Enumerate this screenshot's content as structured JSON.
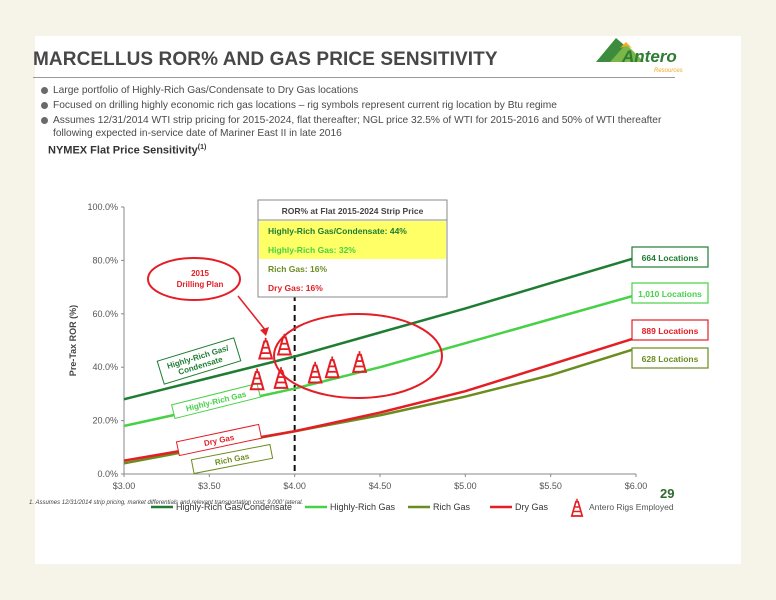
{
  "slide": {
    "title": "MARCELLUS ROR% AND GAS PRICE SENSITIVITY",
    "logo_text": "Antero",
    "logo_subtext": "Resources",
    "bullets": [
      "Large portfolio of Highly-Rich Gas/Condensate to Dry Gas locations",
      "Focused on drilling highly economic rich gas locations – rig symbols represent current rig location by Btu regime",
      "Assumes 12/31/2014 WTI strip pricing for 2015-2024, flat thereafter; NGL price 32.5% of WTI for 2015-2016 and 50% of WTI thereafter following expected in-service date of Mariner East II in late 2016"
    ],
    "chart_heading": "NYMEX Flat Price Sensitivity",
    "chart_heading_sup": "(1)",
    "page_number": "29",
    "footnote": "1.  Assumes 12/31/2014 strip pricing, market differentials and relevant transportation cost; 9,000' lateral."
  },
  "colors": {
    "highly_rich_condensate": "#1e7d32",
    "highly_rich_gas": "#47d147",
    "rich_gas": "#6b8c1f",
    "dry_gas": "#e31e24",
    "rig": "#e31e24",
    "callout_highlight": "#ffff66",
    "page_number": "#2e6b2e"
  },
  "chart_data": {
    "type": "line",
    "x": [
      3.0,
      3.5,
      4.0,
      4.5,
      5.0,
      5.5,
      6.0
    ],
    "xtick_labels": [
      "$3.00",
      "$3.50",
      "$4.00",
      "$4.50",
      "$5.00",
      "$5.50",
      "$6.00"
    ],
    "xlim": [
      3.0,
      6.0
    ],
    "ylabel": "Pre-Tax ROR (%)",
    "ylim": [
      0,
      100
    ],
    "yticks": [
      0,
      20,
      40,
      60,
      80,
      100
    ],
    "ytick_labels": [
      "0.0%",
      "20.0%",
      "40.0%",
      "60.0%",
      "80.0%",
      "100.0%"
    ],
    "grid": false,
    "legend_position": "bottom",
    "reference_line": {
      "x": 4.0,
      "style": "dashed"
    },
    "series": [
      {
        "name": "Highly-Rich Gas/Condensate",
        "color": "#1e7d32",
        "curve_label": "Highly-Rich Gas/ Condensate",
        "end_label": "664 Locations",
        "values": [
          28,
          36,
          44,
          53,
          62,
          71.5,
          81
        ]
      },
      {
        "name": "Highly-Rich Gas",
        "color": "#47d147",
        "curve_label": "Highly-Rich Gas",
        "end_label": "1,010 Locations",
        "values": [
          18,
          25,
          32,
          40,
          49,
          58,
          67
        ]
      },
      {
        "name": "Rich Gas",
        "color": "#6b8c1f",
        "curve_label": "Rich Gas",
        "end_label": "628 Locations",
        "values": [
          4,
          10,
          16,
          22,
          29,
          37,
          47
        ]
      },
      {
        "name": "Dry Gas",
        "color": "#e31e24",
        "curve_label": "Dry Gas",
        "end_label": "889 Locations",
        "values": [
          5,
          10.5,
          16,
          23,
          31,
          41,
          51
        ]
      }
    ],
    "callout": {
      "title": "ROR% at Flat 2015-2024 Strip Price",
      "rows": [
        {
          "text": "Highly-Rich Gas/Condensate: 44%",
          "highlight": true
        },
        {
          "text": "Highly-Rich Gas: 32%",
          "highlight": true
        },
        {
          "text": "Rich Gas: 16%",
          "highlight": false
        },
        {
          "text": "Dry Gas: 16%",
          "highlight": false
        }
      ]
    },
    "drilling_plan_label": "2015 Drilling Plan",
    "rig_legend_label": "Antero Rigs Employed",
    "rigs": [
      {
        "x": 3.83,
        "y": 47
      },
      {
        "x": 3.94,
        "y": 48.5
      },
      {
        "x": 3.78,
        "y": 35.5
      },
      {
        "x": 3.92,
        "y": 36
      },
      {
        "x": 4.12,
        "y": 38
      },
      {
        "x": 4.22,
        "y": 40
      },
      {
        "x": 4.38,
        "y": 42
      }
    ]
  }
}
